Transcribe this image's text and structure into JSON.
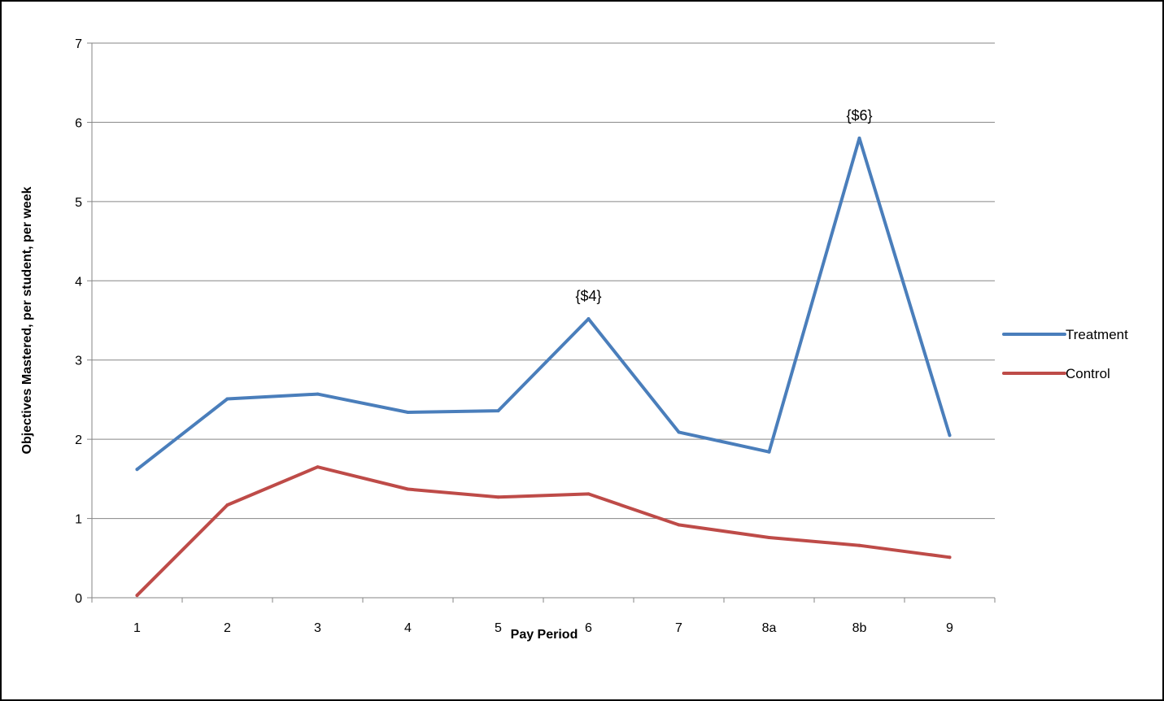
{
  "chart_data": {
    "type": "line",
    "title": "",
    "xlabel": "Pay Period",
    "ylabel": "Objectives Mastered, per student, per week",
    "categories": [
      "1",
      "2",
      "3",
      "4",
      "5",
      "6",
      "7",
      "8a",
      "8b",
      "9"
    ],
    "ylim": [
      0,
      7
    ],
    "yticks": [
      0,
      1,
      2,
      3,
      4,
      5,
      6,
      7
    ],
    "grid": "horizontal",
    "legend": "right",
    "series": [
      {
        "name": "Treatment",
        "color": "#4a7ebb",
        "values": [
          1.62,
          2.51,
          2.57,
          2.34,
          2.36,
          3.52,
          2.09,
          1.84,
          5.8,
          2.05
        ]
      },
      {
        "name": "Control",
        "color": "#be4b48",
        "values": [
          0.03,
          1.17,
          1.65,
          1.37,
          1.27,
          1.31,
          0.92,
          0.76,
          0.66,
          0.51
        ]
      }
    ],
    "annotations": [
      {
        "category": "6",
        "series": "Treatment",
        "text": "{$4}"
      },
      {
        "category": "8b",
        "series": "Treatment",
        "text": "{$6}"
      }
    ]
  }
}
